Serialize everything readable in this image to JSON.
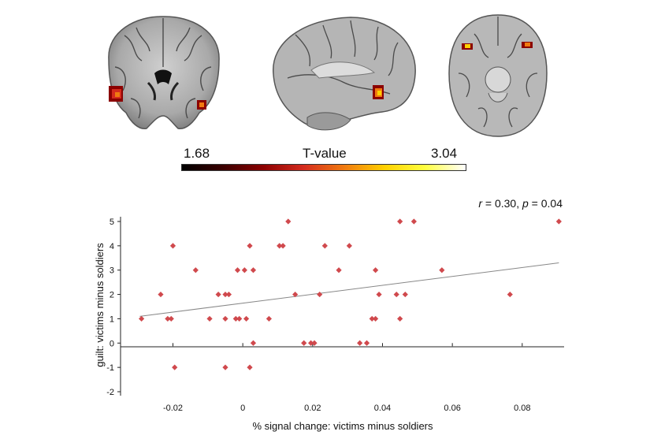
{
  "colorbar": {
    "min_label": "1.68",
    "max_label": "3.04",
    "title": "T-value",
    "colors": [
      "#000000",
      "#3a0000",
      "#8b0000",
      "#d42b1e",
      "#f07a10",
      "#ffd000",
      "#ffff40",
      "#ffffff"
    ]
  },
  "brain_views": [
    "coronal",
    "sagittal",
    "axial"
  ],
  "chart_data": {
    "type": "scatter",
    "title": "",
    "stat_annotation": {
      "r_label": "r",
      "r_text": " = 0.30, ",
      "p_label": "p",
      "p_text": " = 0.04"
    },
    "xlabel": "% signal change: victims minus soldiers",
    "ylabel": "guilt: victims minus soldiers",
    "xlim": [
      -0.035,
      0.092
    ],
    "ylim": [
      -2,
      5
    ],
    "xticks": [
      -0.02,
      0,
      0.02,
      0.04,
      0.06,
      0.08
    ],
    "xtick_labels": [
      "-0.02",
      "0",
      "0.02",
      "0.04",
      "0.06",
      "0.08"
    ],
    "yticks": [
      -2,
      -1,
      0,
      1,
      2,
      3,
      4,
      5
    ],
    "ytick_labels": [
      "-2",
      "-1",
      "0",
      "1",
      "2",
      "3",
      "4",
      "5"
    ],
    "grid": false,
    "marker_color": "#d0494d",
    "line_color": "#888888",
    "regression_line": {
      "x": [
        -0.0295,
        0.0905
      ],
      "y": [
        1.1,
        3.3
      ]
    },
    "points": [
      {
        "x": -0.029,
        "y": 1
      },
      {
        "x": -0.0215,
        "y": 1
      },
      {
        "x": -0.0205,
        "y": 1
      },
      {
        "x": -0.02,
        "y": 4
      },
      {
        "x": -0.0195,
        "y": -1
      },
      {
        "x": -0.0235,
        "y": 2
      },
      {
        "x": -0.0135,
        "y": 3
      },
      {
        "x": -0.0095,
        "y": 1
      },
      {
        "x": -0.007,
        "y": 2
      },
      {
        "x": -0.005,
        "y": 2
      },
      {
        "x": -0.004,
        "y": 2
      },
      {
        "x": -0.005,
        "y": 1
      },
      {
        "x": -0.005,
        "y": -1
      },
      {
        "x": -0.002,
        "y": 1
      },
      {
        "x": -0.001,
        "y": 1
      },
      {
        "x": -0.0015,
        "y": 3
      },
      {
        "x": 0.0005,
        "y": 3
      },
      {
        "x": 0.001,
        "y": 1
      },
      {
        "x": 0.002,
        "y": 4
      },
      {
        "x": 0.002,
        "y": -1
      },
      {
        "x": 0.003,
        "y": 3
      },
      {
        "x": 0.003,
        "y": 0
      },
      {
        "x": 0.0075,
        "y": 1
      },
      {
        "x": 0.0105,
        "y": 4
      },
      {
        "x": 0.0115,
        "y": 4
      },
      {
        "x": 0.013,
        "y": 5
      },
      {
        "x": 0.015,
        "y": 2
      },
      {
        "x": 0.0175,
        "y": 0
      },
      {
        "x": 0.0195,
        "y": 0
      },
      {
        "x": 0.0205,
        "y": 0
      },
      {
        "x": 0.022,
        "y": 2
      },
      {
        "x": 0.0235,
        "y": 4
      },
      {
        "x": 0.0275,
        "y": 3
      },
      {
        "x": 0.0305,
        "y": 4
      },
      {
        "x": 0.0335,
        "y": 0
      },
      {
        "x": 0.0355,
        "y": 0
      },
      {
        "x": 0.037,
        "y": 1
      },
      {
        "x": 0.038,
        "y": 1
      },
      {
        "x": 0.038,
        "y": 3
      },
      {
        "x": 0.039,
        "y": 2
      },
      {
        "x": 0.044,
        "y": 2
      },
      {
        "x": 0.045,
        "y": 1
      },
      {
        "x": 0.045,
        "y": 5
      },
      {
        "x": 0.0465,
        "y": 2
      },
      {
        "x": 0.049,
        "y": 5
      },
      {
        "x": 0.057,
        "y": 3
      },
      {
        "x": 0.0765,
        "y": 2
      },
      {
        "x": 0.0905,
        "y": 5
      }
    ]
  }
}
